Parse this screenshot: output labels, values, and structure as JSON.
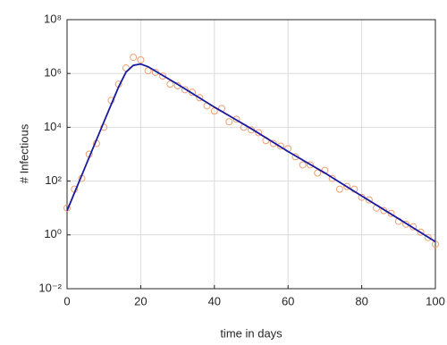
{
  "chart_data": {
    "type": "line",
    "xlabel": "time in days",
    "ylabel": "# Infectious",
    "xlim": [
      0,
      100
    ],
    "xticks": [
      0,
      20,
      40,
      60,
      80,
      100
    ],
    "ylim": [
      0.01,
      100000000
    ],
    "yscale": "log",
    "yticks": [
      {
        "value": 0.01,
        "label": "10⁻²"
      },
      {
        "value": 1,
        "label": "10⁰"
      },
      {
        "value": 100,
        "label": "10²"
      },
      {
        "value": 10000,
        "label": "10⁴"
      },
      {
        "value": 1000000,
        "label": "10⁶"
      },
      {
        "value": 100000000,
        "label": "10⁸"
      }
    ],
    "grid": true,
    "series": [
      {
        "type": "scatter",
        "color": "#f0a070",
        "x": [
          0,
          2,
          4,
          6,
          8,
          10,
          12,
          14,
          16,
          18,
          20,
          22,
          24,
          26,
          28,
          30,
          32,
          34,
          36,
          38,
          40,
          42,
          44,
          46,
          48,
          50,
          52,
          54,
          56,
          58,
          60,
          62,
          64,
          66,
          68,
          70,
          72,
          74,
          76,
          78,
          80,
          82,
          84,
          86,
          88,
          90,
          92,
          94,
          96,
          98,
          100
        ],
        "values": [
          10,
          50,
          126,
          1000,
          2500,
          10000,
          100000,
          400000,
          1600000,
          4000000,
          3200000,
          1260000,
          1100000,
          800000,
          400000,
          350000,
          250000,
          200000,
          126000,
          63000,
          40000,
          50000,
          16000,
          20000,
          10000,
          8000,
          6300,
          3200,
          2500,
          2000,
          1600,
          800,
          400,
          400,
          200,
          250,
          126,
          50,
          63,
          50,
          25,
          20,
          10,
          8,
          6.3,
          3.2,
          2.5,
          2,
          1.26,
          0.8,
          0.45
        ]
      },
      {
        "type": "line",
        "color": "#1a1aa0",
        "x": [
          0,
          5,
          10,
          14,
          16,
          18,
          20,
          22,
          30,
          40,
          50,
          60,
          70,
          80,
          90,
          100
        ],
        "values": [
          7.9,
          355,
          15800,
          316000,
          1120000,
          2000000,
          2240000,
          1780000,
          398000,
          56200,
          8900,
          1260,
          200,
          28,
          4,
          0.56
        ]
      }
    ]
  }
}
